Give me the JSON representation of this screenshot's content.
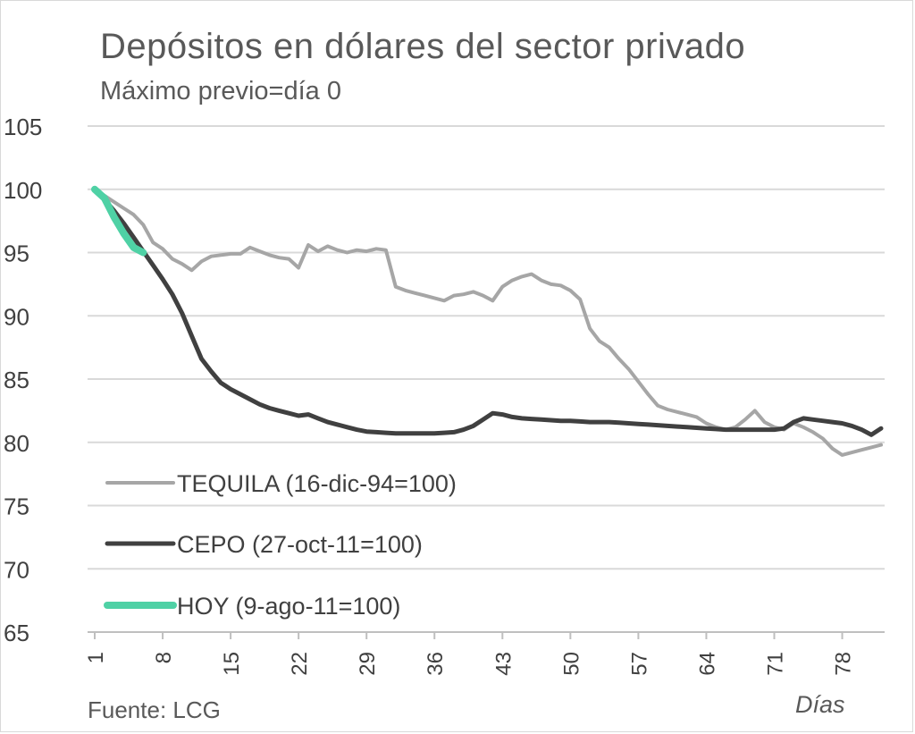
{
  "title": "Depósitos en dólares del sector privado",
  "subtitle": "Máximo previo=día 0",
  "source": "Fuente: LCG",
  "chart_data": {
    "type": "line",
    "title": "Depósitos en dólares del sector privado",
    "subtitle": "Máximo previo=día 0",
    "xlabel": "Días",
    "ylabel": "",
    "xlim": [
      1,
      82
    ],
    "ylim": [
      65,
      105
    ],
    "yticks": [
      "105",
      "100",
      "95",
      "90",
      "85",
      "80",
      "75",
      "70",
      "65"
    ],
    "xticks": [
      "1",
      "8",
      "15",
      "22",
      "29",
      "36",
      "43",
      "50",
      "57",
      "64",
      "71",
      "78"
    ],
    "grid": true,
    "legend_position": "bottom-left",
    "series": [
      {
        "name": "TEQUILA (16-dic-94=100)",
        "color": "#a6a6a6",
        "x": [
          1,
          2,
          3,
          4,
          5,
          6,
          7,
          8,
          9,
          10,
          11,
          12,
          13,
          14,
          15,
          16,
          17,
          18,
          19,
          20,
          21,
          22,
          23,
          24,
          25,
          26,
          27,
          28,
          29,
          30,
          31,
          32,
          33,
          34,
          35,
          36,
          37,
          38,
          39,
          40,
          41,
          42,
          43,
          44,
          45,
          46,
          47,
          48,
          49,
          50,
          51,
          52,
          53,
          54,
          55,
          56,
          57,
          58,
          59,
          60,
          61,
          62,
          63,
          64,
          65,
          66,
          67,
          68,
          69,
          70,
          71,
          72,
          73,
          74,
          75,
          76,
          77,
          78,
          79,
          80,
          81,
          82
        ],
        "values": [
          100,
          99.5,
          99,
          98.5,
          98,
          97.2,
          95.8,
          95.3,
          94.5,
          94.1,
          93.6,
          94.3,
          94.7,
          94.8,
          94.9,
          94.9,
          95.4,
          95.1,
          94.8,
          94.6,
          94.5,
          93.8,
          95.6,
          95.1,
          95.5,
          95.2,
          95.0,
          95.2,
          95.1,
          95.3,
          95.2,
          92.3,
          92.0,
          91.8,
          91.6,
          91.4,
          91.2,
          91.6,
          91.7,
          91.9,
          91.6,
          91.2,
          92.3,
          92.8,
          93.1,
          93.3,
          92.8,
          92.5,
          92.4,
          92.0,
          91.3,
          89.0,
          88.0,
          87.5,
          86.6,
          85.8,
          84.8,
          83.8,
          82.9,
          82.6,
          82.4,
          82.2,
          82.0,
          81.5,
          81.2,
          81.0,
          81.2,
          81.8,
          82.5,
          81.6,
          81.2,
          81.0,
          81.5,
          81.2,
          80.8,
          80.3,
          79.5,
          79.0,
          79.2,
          79.4,
          79.6,
          79.8
        ]
      },
      {
        "name": "CEPO (27-oct-11=100)",
        "color": "#404040",
        "x": [
          1,
          2,
          3,
          4,
          5,
          6,
          7,
          8,
          9,
          10,
          11,
          12,
          13,
          14,
          15,
          16,
          17,
          18,
          19,
          20,
          21,
          22,
          23,
          24,
          25,
          26,
          27,
          28,
          29,
          30,
          31,
          32,
          33,
          34,
          35,
          36,
          37,
          38,
          39,
          40,
          41,
          42,
          43,
          44,
          45,
          46,
          47,
          48,
          49,
          50,
          51,
          52,
          53,
          54,
          55,
          56,
          57,
          58,
          59,
          60,
          61,
          62,
          63,
          64,
          65,
          66,
          67,
          68,
          69,
          70,
          71,
          72,
          73,
          74,
          75,
          76,
          77,
          78,
          79,
          80,
          81,
          82
        ],
        "values": [
          100,
          99.2,
          98.3,
          97.3,
          96.2,
          95.1,
          94.0,
          92.9,
          91.7,
          90.2,
          88.4,
          86.6,
          85.6,
          84.7,
          84.2,
          83.8,
          83.4,
          83.0,
          82.7,
          82.5,
          82.3,
          82.1,
          82.2,
          81.9,
          81.6,
          81.4,
          81.2,
          81.0,
          80.85,
          80.8,
          80.75,
          80.7,
          80.7,
          80.7,
          80.7,
          80.7,
          80.75,
          80.8,
          81.0,
          81.3,
          81.8,
          82.3,
          82.2,
          82.0,
          81.9,
          81.85,
          81.8,
          81.75,
          81.7,
          81.7,
          81.65,
          81.6,
          81.6,
          81.6,
          81.55,
          81.5,
          81.45,
          81.4,
          81.35,
          81.3,
          81.25,
          81.2,
          81.15,
          81.1,
          81.05,
          81.0,
          81.0,
          81.0,
          81.0,
          81.0,
          81.0,
          81.1,
          81.6,
          81.9,
          81.8,
          81.7,
          81.6,
          81.5,
          81.3,
          81.0,
          80.6,
          81.1
        ]
      },
      {
        "name": "HOY (9-ago-11=100)",
        "color": "#4fd1a5",
        "x": [
          1,
          2,
          3,
          4,
          5,
          6
        ],
        "values": [
          100,
          99.3,
          97.8,
          96.5,
          95.4,
          95.0
        ]
      }
    ]
  }
}
